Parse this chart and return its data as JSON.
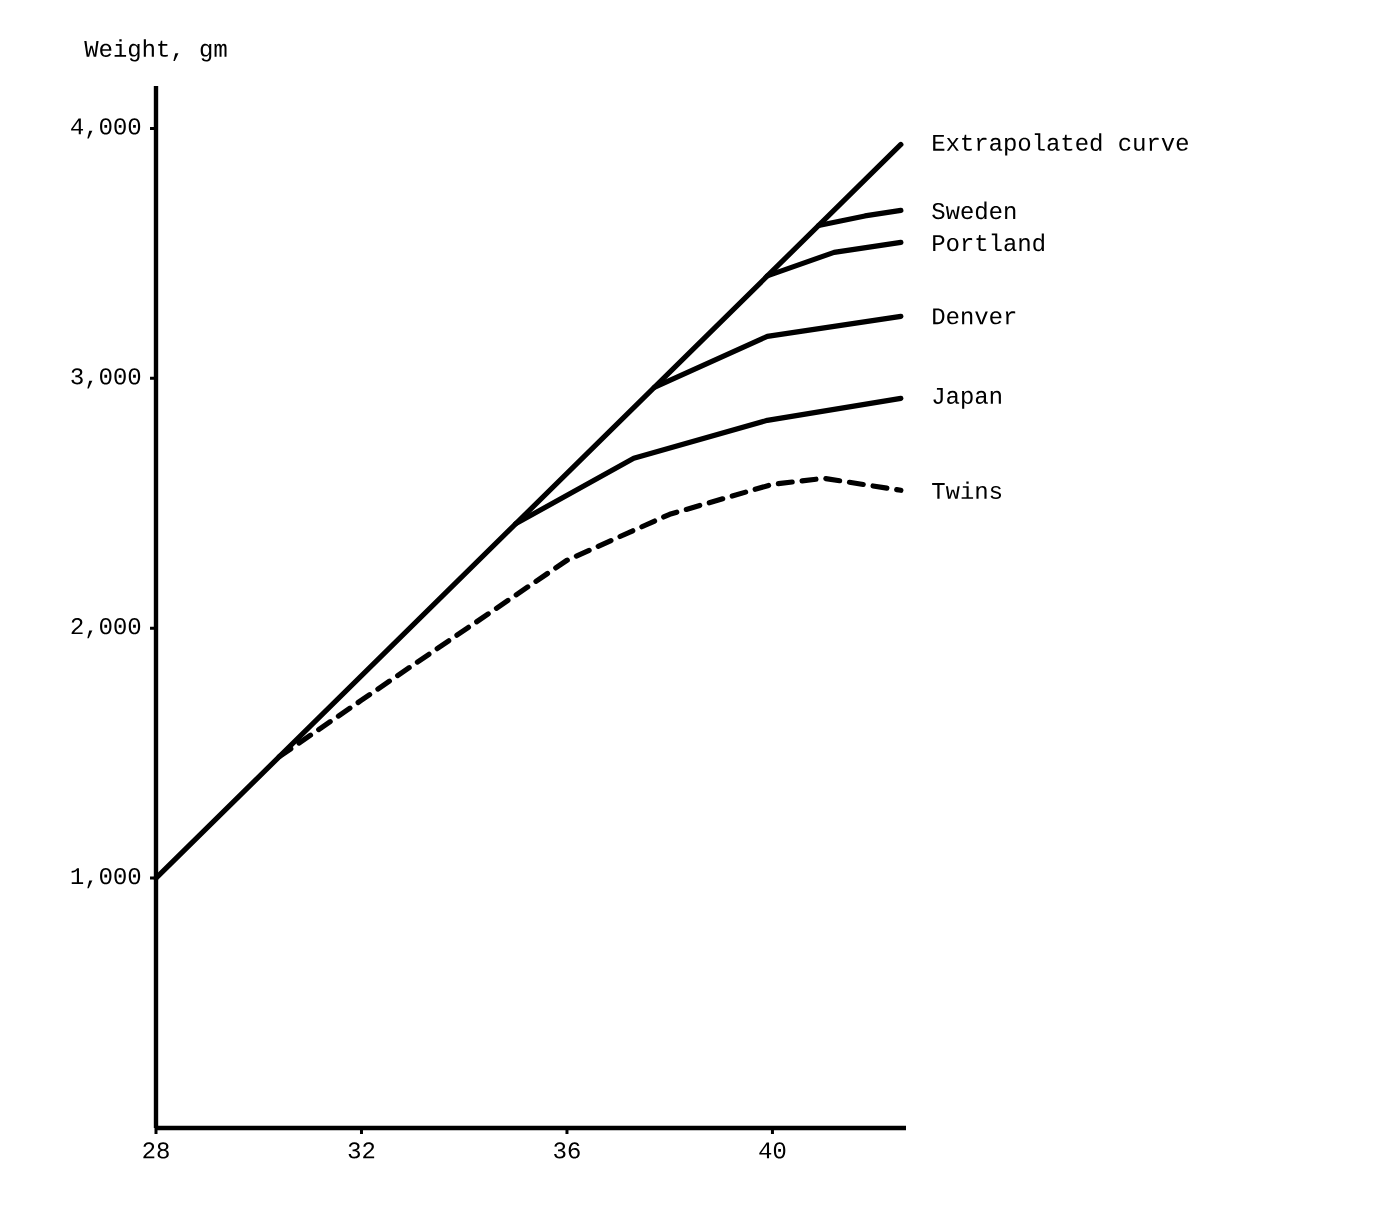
{
  "chart_data": {
    "type": "line",
    "ylabel": "Weight, gm",
    "xlim": [
      28,
      42.6
    ],
    "ylim": [
      0,
      4170
    ],
    "xticks": [
      28,
      32,
      36,
      40
    ],
    "yticks": [
      {
        "value": 1000,
        "label": "1,000"
      },
      {
        "value": 2000,
        "label": "2,000"
      },
      {
        "value": 3000,
        "label": "3,000"
      },
      {
        "value": 4000,
        "label": "4,000"
      }
    ],
    "grid": false,
    "legend": false,
    "marker": "none",
    "series": [
      {
        "name": "Extrapolated curve",
        "color": "#000000",
        "line_style": "solid",
        "x": [
          28,
          42.5
        ],
        "values": [
          1000,
          3936
        ]
      },
      {
        "name": "Sweden",
        "color": "#000000",
        "line_style": "solid",
        "x": [
          40.9,
          41.8,
          42.5
        ],
        "values": [
          3612,
          3650,
          3672
        ]
      },
      {
        "name": "Portland",
        "color": "#000000",
        "line_style": "solid",
        "x": [
          39.9,
          41.2,
          42.5
        ],
        "values": [
          3410,
          3504,
          3544
        ]
      },
      {
        "name": "Denver",
        "color": "#000000",
        "line_style": "solid",
        "x": [
          37.7,
          39.9,
          42.5
        ],
        "values": [
          2964,
          3168,
          3248
        ]
      },
      {
        "name": "Japan",
        "color": "#000000",
        "line_style": "solid",
        "x": [
          35,
          37.3,
          39.9,
          42.5
        ],
        "values": [
          2418,
          2680,
          2832,
          2920
        ]
      },
      {
        "name": "Twins",
        "color": "#000000",
        "line_style": "dashed",
        "x": [
          30.4,
          32,
          36,
          38,
          40,
          41,
          42.5
        ],
        "values": [
          1486,
          1712,
          2272,
          2456,
          2576,
          2600,
          2552
        ]
      }
    ]
  }
}
